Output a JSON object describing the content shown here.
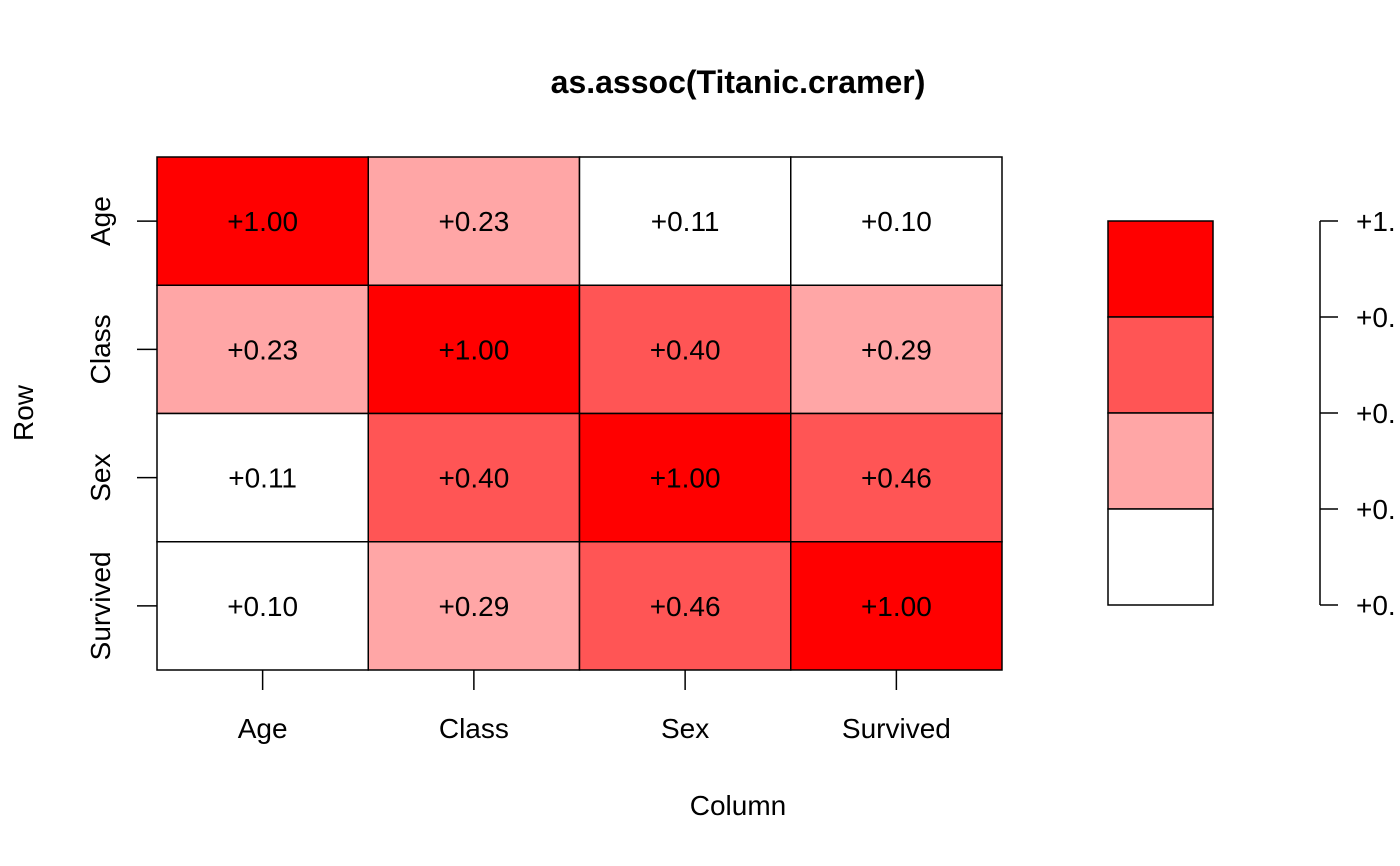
{
  "chart_data": {
    "type": "heatmap",
    "title": "as.assoc(Titanic.cramer)",
    "xlabel": "Column",
    "ylabel": "Row",
    "rows": [
      "Age",
      "Class",
      "Sex",
      "Survived"
    ],
    "columns": [
      "Age",
      "Class",
      "Sex",
      "Survived"
    ],
    "values": [
      [
        1.0,
        0.23,
        0.11,
        0.1
      ],
      [
        0.23,
        1.0,
        0.4,
        0.29
      ],
      [
        0.11,
        0.4,
        1.0,
        0.46
      ],
      [
        0.1,
        0.29,
        0.46,
        1.0
      ]
    ],
    "cell_labels": [
      [
        "+1.00",
        "+0.23",
        "+0.11",
        "+0.10"
      ],
      [
        "+0.23",
        "+1.00",
        "+0.40",
        "+0.29"
      ],
      [
        "+0.11",
        "+0.40",
        "+1.00",
        "+0.46"
      ],
      [
        "+0.10",
        "+0.29",
        "+0.46",
        "+1.00"
      ]
    ],
    "color_scale": {
      "breaks": [
        0,
        0.2,
        0.4,
        0.6,
        1.0
      ],
      "colors": [
        "#ffffff",
        "#ffa6a6",
        "#ff5555",
        "#ff0000"
      ]
    },
    "legend": {
      "placement": "right",
      "tick_labels": [
        "+1.",
        "+0.",
        "+0.",
        "+0.",
        "+0."
      ]
    },
    "grid": false
  }
}
